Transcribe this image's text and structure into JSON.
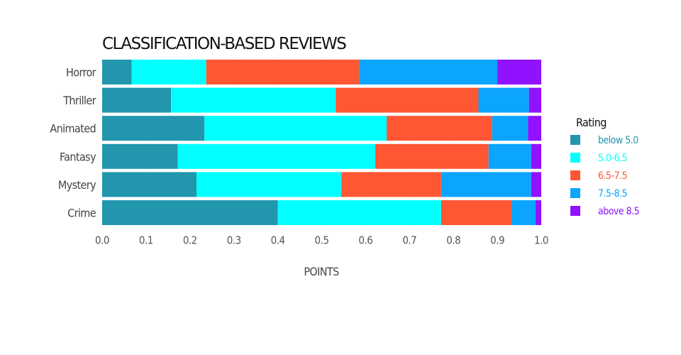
{
  "chart_data": {
    "type": "bar",
    "orientation": "horizontal",
    "stacked": true,
    "title": "CLASSIFICATION-BASED REVIEWS",
    "xlabel": "POINTS",
    "ylabel": "",
    "xlim": [
      0,
      1
    ],
    "x_ticks": [
      "0.0",
      "0.1",
      "0.2",
      "0.3",
      "0.4",
      "0.5",
      "0.6",
      "0.7",
      "0.8",
      "0.9",
      "1.0"
    ],
    "grid": true,
    "legend_title": "Rating",
    "legend_position": "right",
    "categories": [
      "Horror",
      "Thriller",
      "Animated",
      "Fantasy",
      "Mystery",
      "Crime"
    ],
    "series": [
      {
        "name": "below 5.0",
        "color": "#2196ad",
        "values": [
          0.067,
          0.157,
          0.233,
          0.172,
          0.215,
          0.4
        ]
      },
      {
        "name": "5.0-6.5",
        "color": "#00ffff",
        "values": [
          0.17,
          0.375,
          0.415,
          0.45,
          0.33,
          0.372
        ]
      },
      {
        "name": "6.5-7.5",
        "color": "#ff5733",
        "values": [
          0.348,
          0.325,
          0.24,
          0.258,
          0.227,
          0.16
        ]
      },
      {
        "name": "7.5-8.5",
        "color": "#0ba5ff",
        "values": [
          0.315,
          0.115,
          0.082,
          0.097,
          0.205,
          0.055
        ]
      },
      {
        "name": "above 8.5",
        "color": "#9012fe",
        "values": [
          0.1,
          0.028,
          0.03,
          0.023,
          0.023,
          0.013
        ]
      }
    ]
  }
}
